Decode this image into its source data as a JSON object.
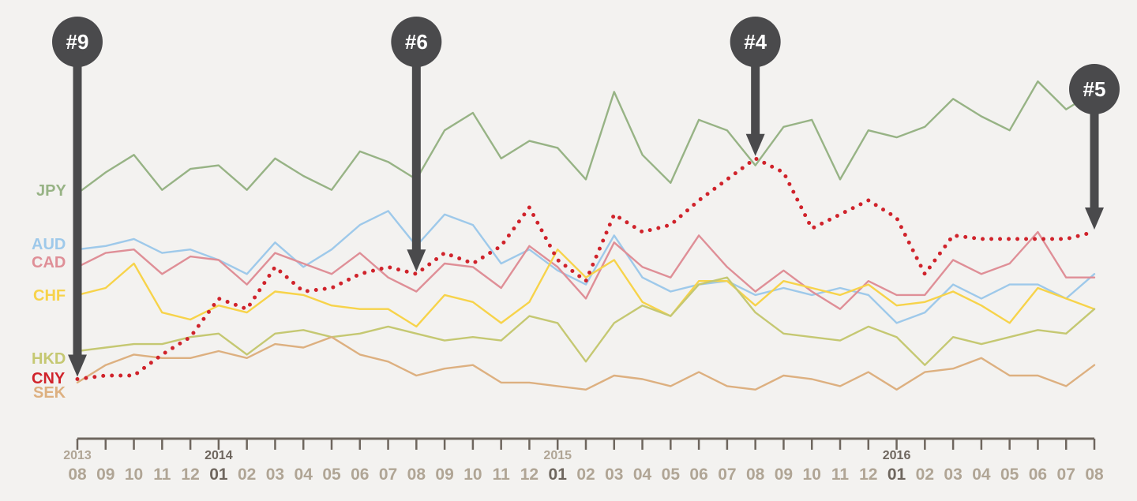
{
  "chart_data": {
    "type": "line",
    "x_year_labels": [
      {
        "index": 0,
        "label": "2013",
        "major": false
      },
      {
        "index": 5,
        "label": "2014",
        "major": true
      },
      {
        "index": 17,
        "label": "2015",
        "major": false
      },
      {
        "index": 29,
        "label": "2016",
        "major": true
      }
    ],
    "x_month_labels": [
      "08",
      "09",
      "10",
      "11",
      "12",
      "01",
      "02",
      "03",
      "04",
      "05",
      "06",
      "07",
      "08",
      "09",
      "10",
      "11",
      "12",
      "01",
      "02",
      "03",
      "04",
      "05",
      "06",
      "07",
      "08",
      "09",
      "10",
      "11",
      "12",
      "01",
      "02",
      "03",
      "04",
      "05",
      "06",
      "07",
      "08"
    ],
    "y_range": [
      0,
      100
    ],
    "grid": false,
    "legend": "left of series start",
    "series": [
      {
        "name": "JPY",
        "color": "#97b385",
        "dotted": false,
        "values": [
          61,
          67,
          72,
          62,
          68,
          69,
          62,
          71,
          66,
          62,
          73,
          70,
          65,
          79,
          84,
          71,
          76,
          74,
          65,
          90,
          72,
          64,
          82,
          79,
          69,
          80,
          82,
          65,
          79,
          77,
          80,
          88,
          83,
          79,
          93,
          85,
          90
        ]
      },
      {
        "name": "AUD",
        "color": "#9ec9ea",
        "dotted": false,
        "values": [
          45,
          46,
          48,
          44,
          45,
          42,
          38,
          47,
          40,
          45,
          52,
          56,
          46,
          55,
          52,
          41,
          45,
          39,
          35,
          49,
          37,
          33,
          35,
          36,
          32,
          34,
          32,
          34,
          32,
          24,
          27,
          35,
          31,
          35,
          35,
          31,
          38
        ]
      },
      {
        "name": "CAD",
        "color": "#df8f97",
        "dotted": false,
        "values": [
          40,
          44,
          45,
          38,
          43,
          42,
          35,
          44,
          41,
          38,
          44,
          37,
          33,
          41,
          40,
          34,
          46,
          40,
          31,
          47,
          40,
          37,
          49,
          40,
          33,
          39,
          33,
          28,
          36,
          32,
          32,
          42,
          38,
          41,
          50,
          37,
          37
        ]
      },
      {
        "name": "CHF",
        "color": "#f7d34a",
        "dotted": false,
        "values": [
          32,
          34,
          41,
          27,
          25,
          29,
          27,
          33,
          32,
          29,
          28,
          28,
          23,
          32,
          30,
          24,
          30,
          45,
          37,
          42,
          30,
          26,
          36,
          36,
          29,
          36,
          34,
          32,
          35,
          29,
          30,
          33,
          29,
          24,
          34,
          31,
          28
        ]
      },
      {
        "name": "HKD",
        "color": "#c5c872",
        "dotted": false,
        "values": [
          16,
          17,
          18,
          18,
          20,
          21,
          15,
          21,
          22,
          20,
          21,
          23,
          21,
          19,
          20,
          19,
          26,
          24,
          13,
          24,
          29,
          26,
          35,
          37,
          27,
          21,
          20,
          19,
          23,
          20,
          12,
          20,
          18,
          20,
          22,
          21,
          28
        ]
      },
      {
        "name": "CNY",
        "color": "#d0232b",
        "dotted": true,
        "values": [
          8,
          9,
          9,
          15,
          20,
          31,
          28,
          40,
          33,
          34,
          38,
          40,
          38,
          44,
          41,
          46,
          57,
          42,
          36,
          55,
          50,
          52,
          59,
          65,
          71,
          67,
          51,
          55,
          59,
          54,
          38,
          49,
          48,
          48,
          48,
          48,
          50
        ]
      },
      {
        "name": "SEK",
        "color": "#ddb080",
        "dotted": false,
        "values": [
          7,
          12,
          15,
          14,
          14,
          16,
          14,
          18,
          17,
          20,
          15,
          13,
          9,
          11,
          12,
          7,
          7,
          6,
          5,
          9,
          8,
          6,
          10,
          6,
          5,
          9,
          8,
          6,
          10,
          5,
          10,
          11,
          14,
          9,
          9,
          6,
          12
        ]
      }
    ],
    "annotations": [
      {
        "label": "#9",
        "index": 0,
        "target_series": "CNY"
      },
      {
        "label": "#6",
        "index": 12,
        "target_series": "CNY"
      },
      {
        "label": "#4",
        "index": 24,
        "target_series": "CNY"
      },
      {
        "label": "#5",
        "index": 36,
        "target_series": "CNY"
      }
    ]
  }
}
